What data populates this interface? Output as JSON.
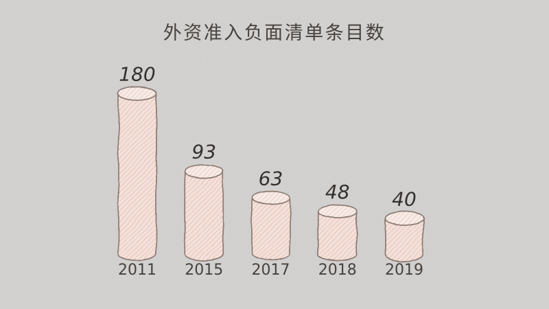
{
  "title": "外资准入负面清单条目数",
  "chart_data": {
    "type": "bar",
    "title": "外资准入负面清单条目数",
    "categories": [
      "2011",
      "2015",
      "2017",
      "2018",
      "2019"
    ],
    "values": [
      180,
      93,
      63,
      48,
      40
    ],
    "xlabel": "",
    "ylabel": "",
    "ylim": [
      0,
      190
    ],
    "grid": false,
    "legend": false,
    "style": "hand-drawn-cylinder-bars-on-paper",
    "colors": {
      "background": "#d6d4d2",
      "bar_fill": "#f6e7e2",
      "bar_hatch": "#e9c9be",
      "bar_top_fill": "#f7ece8",
      "bar_top_hatch": "#eed5cc",
      "bar_outline": "#8a7a72",
      "axis_line": "#514c47",
      "axis_shadow": "#a39d97",
      "value_text": "#34302e",
      "year_text": "#45413e",
      "title_text": "#3a3633"
    }
  }
}
